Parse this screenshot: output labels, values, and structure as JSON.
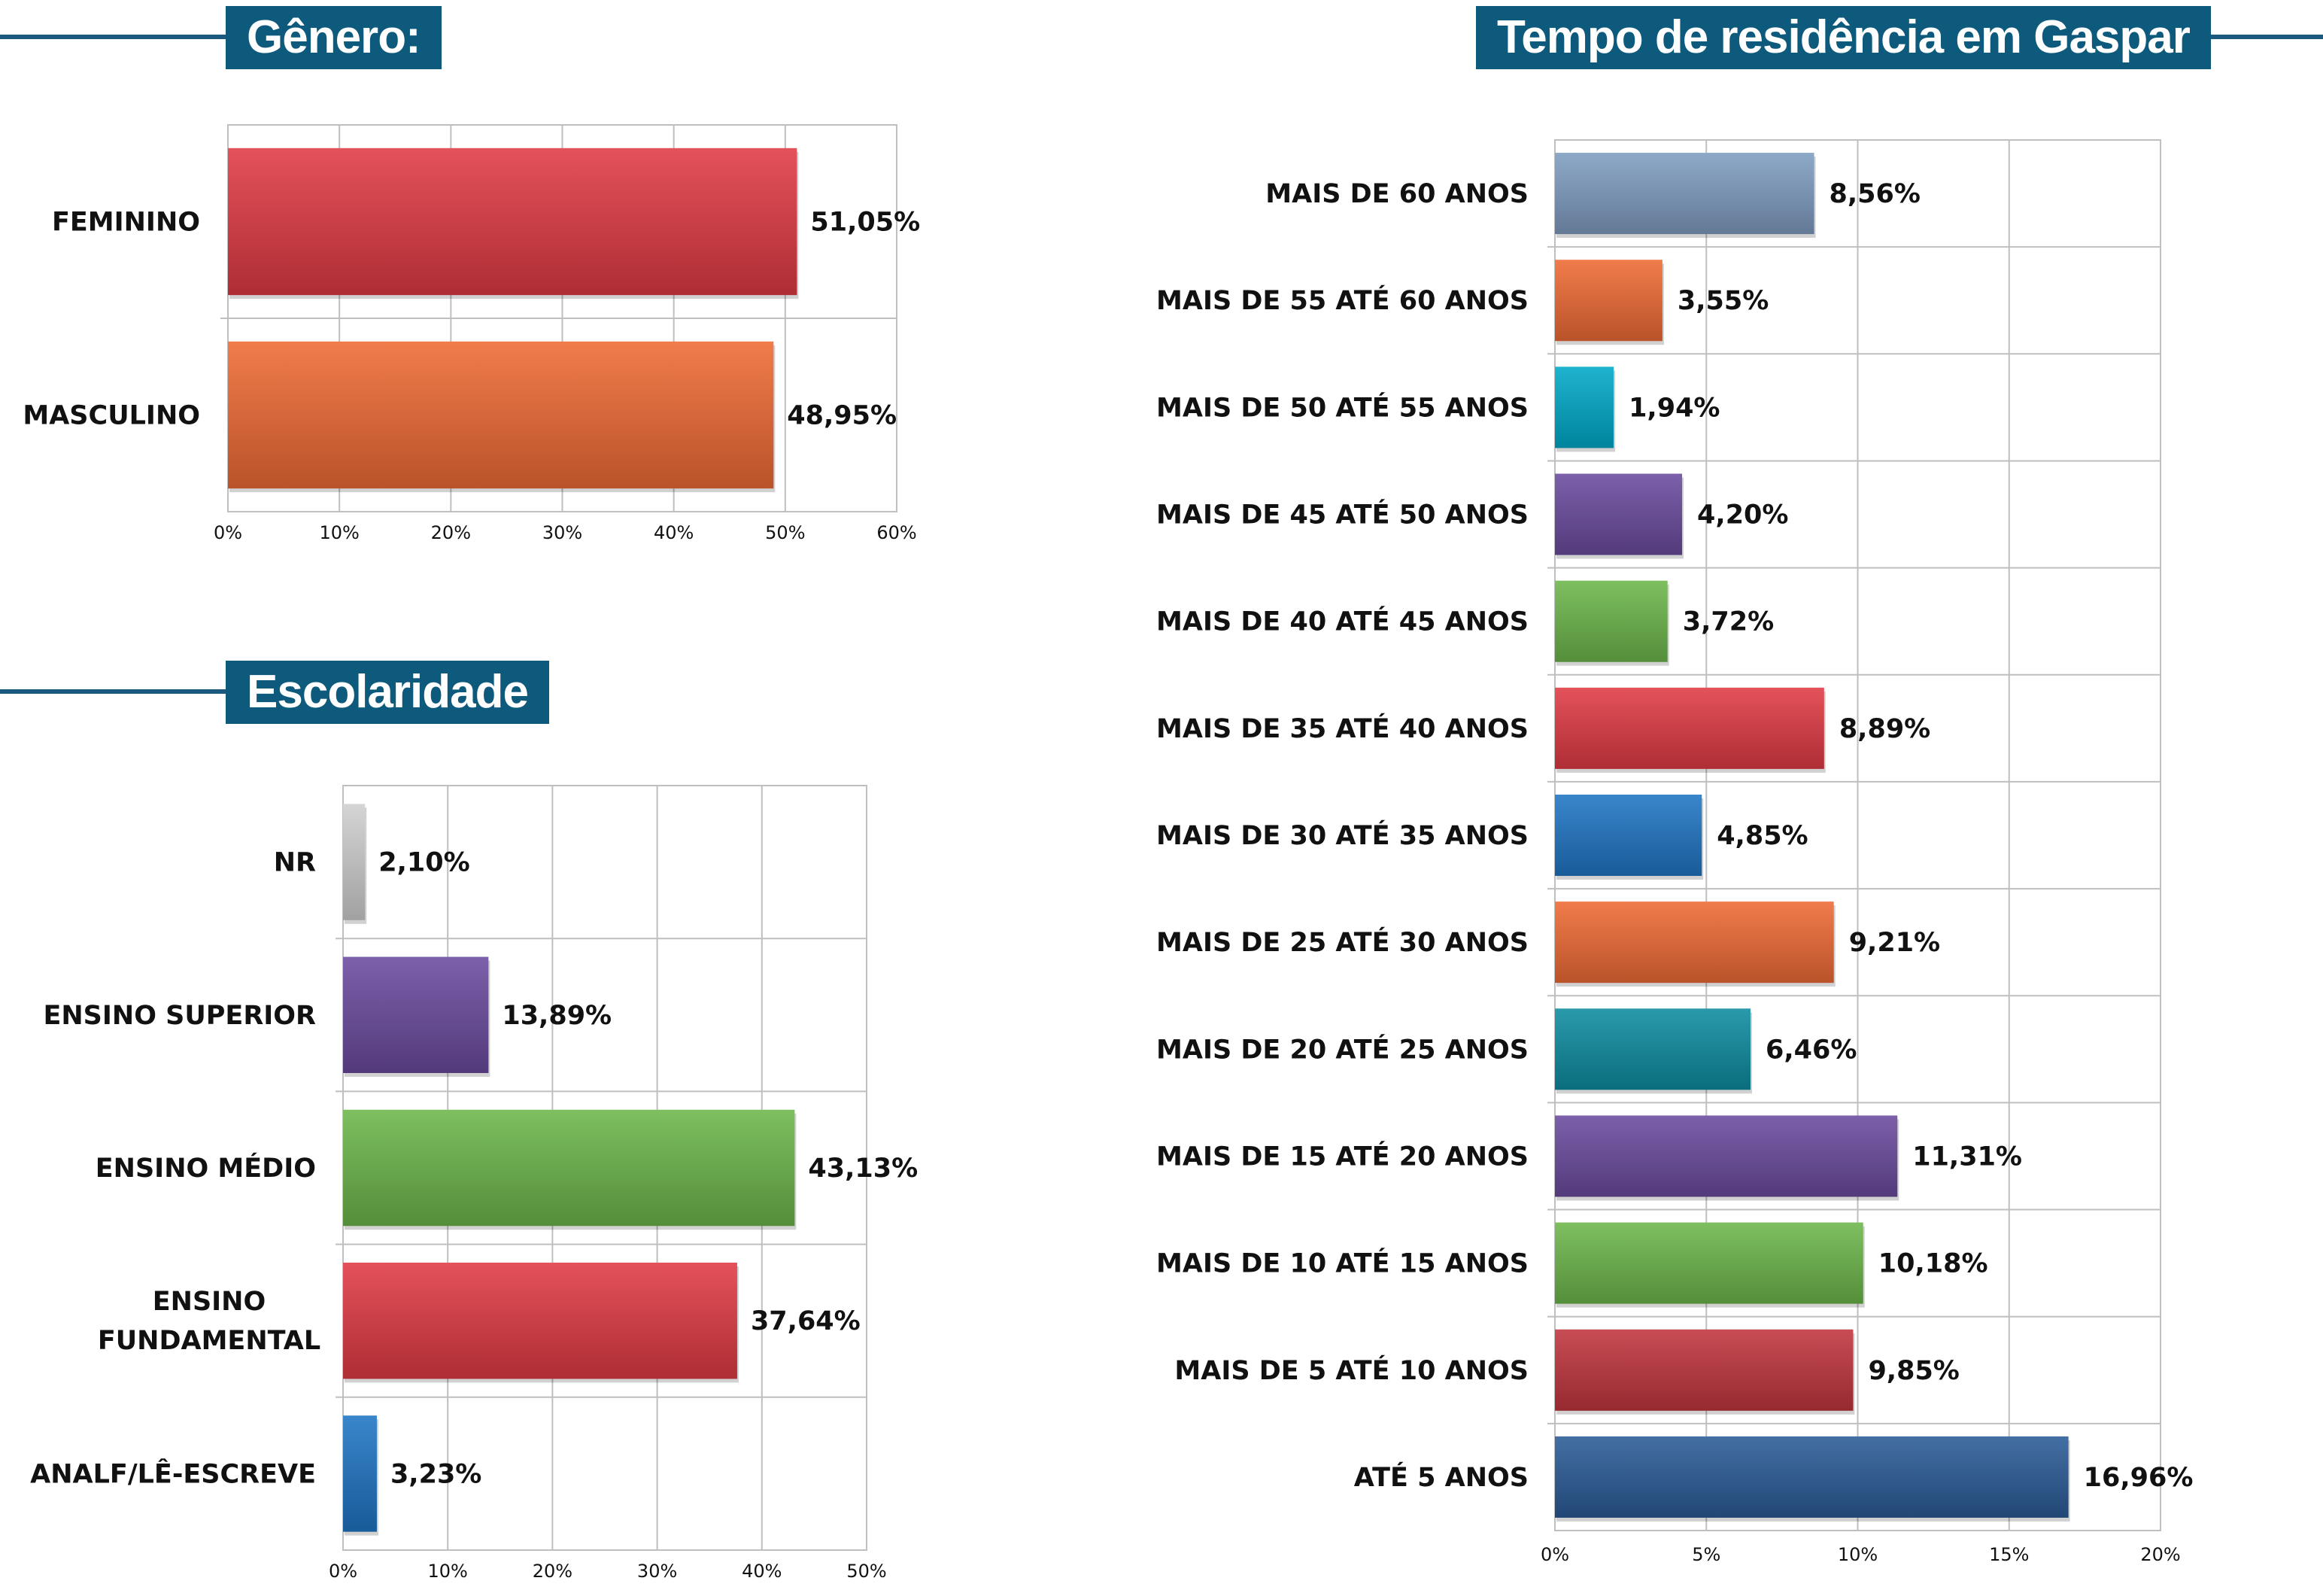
{
  "colors": {
    "accent": "#0d5a7d",
    "red": "#e03a44",
    "orange": "#ee6a34",
    "purple": "#6a4a9e",
    "green": "#6cb64a",
    "blue": "#1f75c4",
    "gray": "#cfcfcf",
    "steel": "#7f9dc0",
    "teal": "#00a9c9",
    "darkteal": "#0d8ca0",
    "darkred": "#c0353e",
    "navy": "#2a5b96"
  },
  "sections": {
    "genero": "Gênero:",
    "escolaridade": "Escolaridade",
    "tempo": "Tempo de residência em Gaspar"
  },
  "chart_data": [
    {
      "id": "genero",
      "type": "bar",
      "orientation": "horizontal",
      "title": "Gênero:",
      "categories": [
        "FEMININO",
        "MASCULINO"
      ],
      "values": [
        51.05,
        48.95
      ],
      "value_labels": [
        "51,05%",
        "48,95%"
      ],
      "bar_colors": [
        "red",
        "orange"
      ],
      "xlim": [
        0,
        60
      ],
      "xticks": [
        "0%",
        "10%",
        "20%",
        "30%",
        "40%",
        "50%",
        "60%"
      ],
      "grid": true
    },
    {
      "id": "escolaridade",
      "type": "bar",
      "orientation": "horizontal",
      "title": "Escolaridade",
      "categories": [
        "NR",
        "ENSINO SUPERIOR",
        "ENSINO MÉDIO",
        "ENSINO FUNDAMENTAL",
        "ANALF/LÊ-ESCREVE"
      ],
      "category_lines": [
        [
          "NR"
        ],
        [
          "ENSINO SUPERIOR"
        ],
        [
          "ENSINO MÉDIO"
        ],
        [
          "ENSINO",
          "FUNDAMENTAL"
        ],
        [
          "ANALF/LÊ-ESCREVE"
        ]
      ],
      "values": [
        2.1,
        13.89,
        43.13,
        37.64,
        3.23
      ],
      "value_labels": [
        "2,10%",
        "13,89%",
        "43,13%",
        "37,64%",
        "3,23%"
      ],
      "bar_colors": [
        "gray",
        "purple",
        "green",
        "red",
        "blue"
      ],
      "xlim": [
        0,
        50
      ],
      "xticks": [
        "0%",
        "10%",
        "20%",
        "30%",
        "40%",
        "50%"
      ],
      "grid": true
    },
    {
      "id": "tempo",
      "type": "bar",
      "orientation": "horizontal",
      "title": "Tempo de residência em Gaspar",
      "categories": [
        "MAIS DE 60 ANOS",
        "MAIS DE 55 ATÉ 60 ANOS",
        "MAIS DE 50 ATÉ 55 ANOS",
        "MAIS DE 45 ATÉ 50 ANOS",
        "MAIS DE 40 ATÉ 45 ANOS",
        "MAIS DE 35 ATÉ 40 ANOS",
        "MAIS DE 30 ATÉ 35 ANOS",
        "MAIS DE 25 ATÉ 30 ANOS",
        "MAIS DE 20 ATÉ 25 ANOS",
        "MAIS DE 15 ATÉ 20 ANOS",
        "MAIS DE 10 ATÉ 15 ANOS",
        "MAIS DE 5 ATÉ 10 ANOS",
        "ATÉ 5 ANOS"
      ],
      "values": [
        8.56,
        3.55,
        1.94,
        4.2,
        3.72,
        8.89,
        4.85,
        9.21,
        6.46,
        11.31,
        10.18,
        9.85,
        16.96
      ],
      "value_labels": [
        "8,56%",
        "3,55%",
        "1,94%",
        "4,20%",
        "3,72%",
        "8,89%",
        "4,85%",
        "9,21%",
        "6,46%",
        "11,31%",
        "10,18%",
        "9,85%",
        "16,96%"
      ],
      "bar_colors": [
        "steel",
        "orange",
        "teal",
        "purple",
        "green",
        "red",
        "blue",
        "orange",
        "darkteal",
        "purple",
        "green",
        "darkred",
        "navy"
      ],
      "xlim": [
        0,
        20
      ],
      "xticks": [
        "0%",
        "5%",
        "10%",
        "15%",
        "20%"
      ],
      "grid": true
    }
  ]
}
